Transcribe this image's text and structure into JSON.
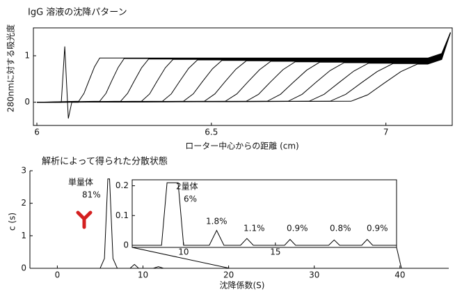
{
  "chart_data": [
    {
      "type": "line",
      "title": "IgG 溶液の沈降パターン",
      "x_label": "ローター中心からの距離 (cm)",
      "y_label": "280nmに対する吸光度",
      "xlim": [
        5.99,
        7.19
      ],
      "ylim": [
        -0.5,
        1.6
      ],
      "xticks": [
        6,
        6.5,
        7
      ],
      "yticks": [
        0,
        1
      ],
      "series": [
        {
          "color": "#000",
          "x": [
            6.05,
            6.07,
            6.08,
            6.085,
            6.09,
            6.1,
            6.12
          ],
          "values": [
            0,
            0,
            1.2,
            0.4,
            -0.35,
            0,
            0
          ]
        },
        {
          "color": "#000",
          "x": [
            6.0,
            6.12,
            6.135,
            6.15,
            6.165,
            6.18,
            7.12,
            7.16,
            7.185
          ],
          "values": [
            0,
            0.02,
            0.19,
            0.48,
            0.76,
            0.95,
            0.95,
            1.05,
            1.5
          ]
        },
        {
          "color": "#000",
          "x": [
            6.0,
            6.18,
            6.198,
            6.215,
            6.233,
            6.25,
            7.12,
            7.16,
            7.185
          ],
          "values": [
            0,
            0.02,
            0.19,
            0.47,
            0.75,
            0.94,
            0.94,
            1.04,
            1.5
          ]
        },
        {
          "color": "#000",
          "x": [
            6.0,
            6.24,
            6.26,
            6.28,
            6.3,
            6.32,
            7.12,
            7.16,
            7.185
          ],
          "values": [
            0,
            0.02,
            0.19,
            0.47,
            0.74,
            0.93,
            0.93,
            1.03,
            1.5
          ]
        },
        {
          "color": "#000",
          "x": [
            6.0,
            6.3,
            6.323,
            6.345,
            6.368,
            6.39,
            7.12,
            7.16,
            7.185
          ],
          "values": [
            0,
            0.02,
            0.18,
            0.46,
            0.74,
            0.92,
            0.92,
            1.02,
            1.5
          ]
        },
        {
          "color": "#000",
          "x": [
            6.0,
            6.36,
            6.385,
            6.41,
            6.435,
            6.46,
            7.12,
            7.16,
            7.185
          ],
          "values": [
            0,
            0.02,
            0.18,
            0.46,
            0.73,
            0.91,
            0.91,
            1.01,
            1.5
          ]
        },
        {
          "color": "#000",
          "x": [
            6.0,
            6.42,
            6.448,
            6.475,
            6.503,
            6.53,
            7.12,
            7.16,
            7.185
          ],
          "values": [
            0,
            0.02,
            0.18,
            0.45,
            0.72,
            0.9,
            0.9,
            1.0,
            1.5
          ]
        },
        {
          "color": "#000",
          "x": [
            6.0,
            6.48,
            6.51,
            6.54,
            6.57,
            6.6,
            7.12,
            7.16,
            7.185
          ],
          "values": [
            0,
            0.02,
            0.18,
            0.45,
            0.71,
            0.89,
            0.89,
            0.99,
            1.5
          ]
        },
        {
          "color": "#000",
          "x": [
            6.0,
            6.54,
            6.573,
            6.605,
            6.638,
            6.67,
            7.12,
            7.16,
            7.185
          ],
          "values": [
            0,
            0.02,
            0.18,
            0.44,
            0.7,
            0.88,
            0.88,
            0.98,
            1.5
          ]
        },
        {
          "color": "#000",
          "x": [
            6.0,
            6.6,
            6.635,
            6.67,
            6.705,
            6.74,
            7.12,
            7.16,
            7.185
          ],
          "values": [
            0,
            0.02,
            0.17,
            0.44,
            0.7,
            0.87,
            0.87,
            0.97,
            1.5
          ]
        },
        {
          "color": "#000",
          "x": [
            6.0,
            6.66,
            6.698,
            6.735,
            6.773,
            6.81,
            7.12,
            7.16,
            7.185
          ],
          "values": [
            0,
            0.02,
            0.17,
            0.43,
            0.69,
            0.86,
            0.86,
            0.96,
            1.5
          ]
        },
        {
          "color": "#000",
          "x": [
            6.0,
            6.72,
            6.76,
            6.8,
            6.84,
            6.88,
            7.12,
            7.16,
            7.185
          ],
          "values": [
            0,
            0.02,
            0.17,
            0.43,
            0.68,
            0.85,
            0.85,
            0.95,
            1.5
          ]
        },
        {
          "color": "#000",
          "x": [
            6.0,
            6.78,
            6.823,
            6.865,
            6.908,
            6.95,
            7.12,
            7.16,
            7.185
          ],
          "values": [
            0,
            0.02,
            0.17,
            0.42,
            0.67,
            0.84,
            0.84,
            0.94,
            1.5
          ]
        },
        {
          "color": "#000",
          "x": [
            6.0,
            6.84,
            6.885,
            6.93,
            6.975,
            7.02,
            7.12,
            7.16,
            7.185
          ],
          "values": [
            0,
            0.02,
            0.17,
            0.42,
            0.66,
            0.83,
            0.83,
            0.93,
            1.5
          ]
        },
        {
          "color": "#000",
          "x": [
            6.0,
            6.9,
            6.948,
            6.995,
            7.043,
            7.09,
            7.12,
            7.16,
            7.185
          ],
          "values": [
            0,
            0.02,
            0.16,
            0.41,
            0.66,
            0.82,
            0.82,
            0.92,
            1.5
          ]
        }
      ]
    },
    {
      "type": "line",
      "title": "解析によって得られた分散状態",
      "x_label": "沈降係数(S)",
      "y_label": "c (s)",
      "xlim": [
        -3.2,
        45.7
      ],
      "ylim": [
        0,
        3
      ],
      "xticks": [
        0,
        10,
        20,
        30,
        40
      ],
      "yticks": [
        0,
        1,
        2,
        3
      ],
      "series": [
        {
          "color": "#000",
          "x": [
            -3,
            5,
            5.5,
            5.9,
            6.1,
            6.5,
            7,
            8.5,
            9,
            9.5,
            11.2,
            11.8,
            12.4,
            45
          ],
          "values": [
            0,
            0,
            0.3,
            2.75,
            2.75,
            0.3,
            0,
            0,
            0.12,
            0,
            0,
            0.05,
            0,
            0
          ]
        }
      ],
      "annotations": [
        "単量体",
        "81%"
      ],
      "inset": {
        "xlim": [
          7.2,
          21.6
        ],
        "ylim": [
          0,
          0.22
        ],
        "xticks": [
          10,
          15
        ],
        "yticks": [
          0,
          0.1,
          0.2
        ],
        "series": [
          {
            "color": "#000",
            "x": [
              7.2,
              8.8,
              9.1,
              9.4,
              9.7,
              10,
              11.4,
              11.8,
              12.2,
              13.1,
              13.45,
              13.8,
              15.5,
              15.8,
              16.1,
              17.9,
              18.2,
              18.5,
              19.7,
              20,
              20.3,
              21.6
            ],
            "values": [
              0,
              0,
              0.21,
              0.21,
              0.21,
              0,
              0,
              0.05,
              0,
              0,
              0.023,
              0,
              0,
              0.02,
              0,
              0,
              0.018,
              0,
              0,
              0.02,
              0,
              0
            ]
          }
        ],
        "annotations": [
          "2量体",
          "6%",
          "1.8%",
          "1.1%",
          "0.9%",
          "0.8%",
          "0.9%"
        ]
      }
    }
  ]
}
